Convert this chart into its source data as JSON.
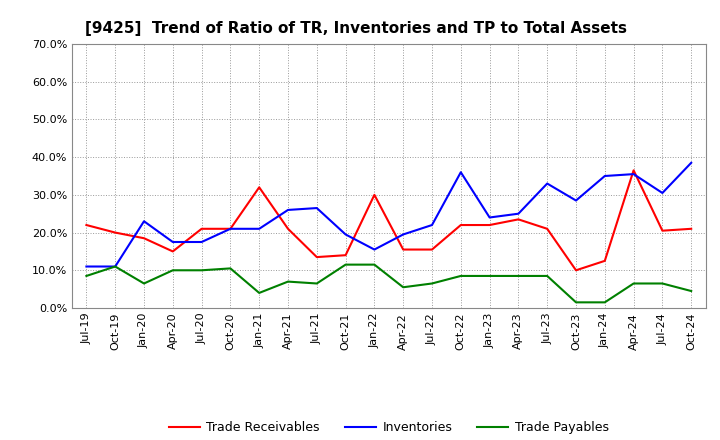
{
  "title": "[9425]  Trend of Ratio of TR, Inventories and TP to Total Assets",
  "labels": [
    "Jul-19",
    "Oct-19",
    "Jan-20",
    "Apr-20",
    "Jul-20",
    "Oct-20",
    "Jan-21",
    "Apr-21",
    "Jul-21",
    "Oct-21",
    "Jan-22",
    "Apr-22",
    "Jul-22",
    "Oct-22",
    "Jan-23",
    "Apr-23",
    "Jul-23",
    "Oct-23",
    "Jan-24",
    "Apr-24",
    "Jul-24",
    "Oct-24"
  ],
  "trade_receivables": [
    0.22,
    0.2,
    0.185,
    0.15,
    0.21,
    0.21,
    0.32,
    0.21,
    0.135,
    0.14,
    0.3,
    0.155,
    0.155,
    0.22,
    0.22,
    0.235,
    0.21,
    0.1,
    0.125,
    0.365,
    0.205,
    0.21
  ],
  "inventories": [
    0.11,
    0.11,
    0.23,
    0.175,
    0.175,
    0.21,
    0.21,
    0.26,
    0.265,
    0.195,
    0.155,
    0.195,
    0.22,
    0.36,
    0.24,
    0.25,
    0.33,
    0.285,
    0.35,
    0.355,
    0.305,
    0.385
  ],
  "trade_payables": [
    0.085,
    0.11,
    0.065,
    0.1,
    0.1,
    0.105,
    0.04,
    0.07,
    0.065,
    0.115,
    0.115,
    0.055,
    0.065,
    0.085,
    0.085,
    0.085,
    0.085,
    0.015,
    0.015,
    0.065,
    0.065,
    0.045
  ],
  "ylim": [
    0.0,
    0.7
  ],
  "yticks": [
    0.0,
    0.1,
    0.2,
    0.3,
    0.4,
    0.5,
    0.6,
    0.7
  ],
  "tr_color": "#FF0000",
  "inv_color": "#0000FF",
  "tp_color": "#008000",
  "background_color": "#FFFFFF",
  "grid_color": "#999999",
  "legend_labels": [
    "Trade Receivables",
    "Inventories",
    "Trade Payables"
  ],
  "title_fontsize": 11,
  "tick_fontsize": 8,
  "legend_fontsize": 9
}
